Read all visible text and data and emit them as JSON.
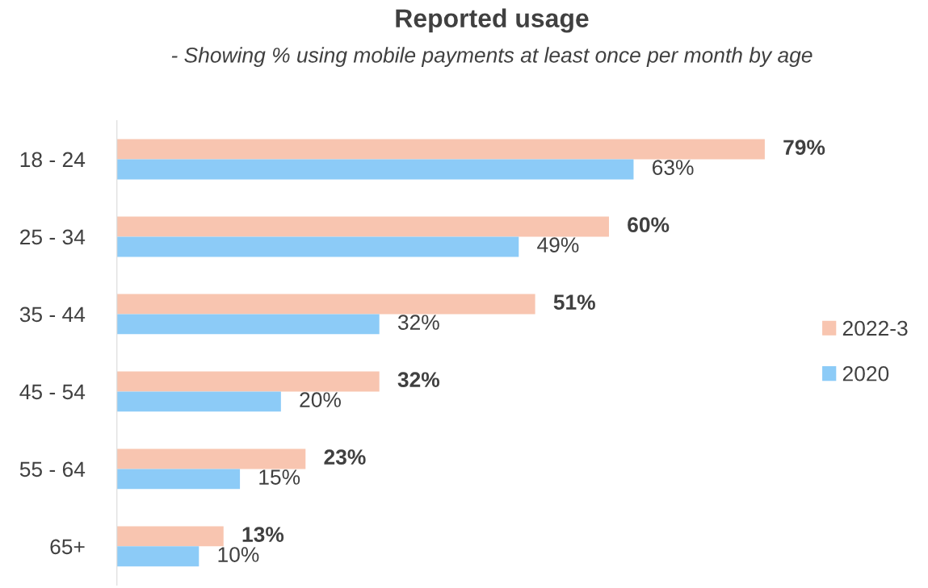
{
  "chart_data": {
    "type": "bar",
    "orientation": "horizontal",
    "title": "Reported usage",
    "subtitle": "- Showing % using mobile payments at least once per month by age",
    "categories": [
      "18 - 24",
      "25 - 34",
      "35 - 44",
      "45 - 54",
      "55 - 64",
      "65+"
    ],
    "series": [
      {
        "name": "2022-3",
        "color": "#f8c5b0",
        "values": [
          79,
          60,
          51,
          32,
          23,
          13
        ],
        "value_labels": [
          "79%",
          "60%",
          "51%",
          "32%",
          "23%",
          "13%"
        ]
      },
      {
        "name": "2020",
        "color": "#8ccbf7",
        "values": [
          63,
          49,
          32,
          20,
          15,
          10
        ],
        "value_labels": [
          "63%",
          "49%",
          "32%",
          "20%",
          "15%",
          "10%"
        ]
      }
    ],
    "legend": "right",
    "grid": false
  }
}
